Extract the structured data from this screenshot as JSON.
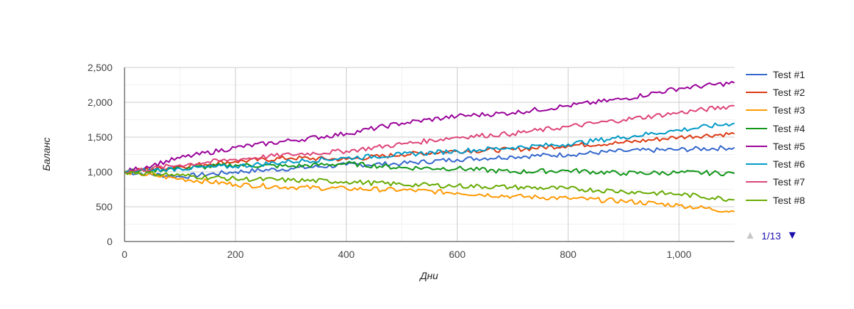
{
  "chart_data": {
    "type": "line",
    "title": "",
    "xlabel": "Дни",
    "ylabel": "Баланс",
    "xlim": [
      0,
      1100
    ],
    "ylim": [
      0,
      2500
    ],
    "x_ticks": [
      0,
      200,
      400,
      600,
      800,
      1000
    ],
    "x_tick_labels": [
      "0",
      "200",
      "400",
      "600",
      "800",
      "1,000"
    ],
    "y_ticks": [
      0,
      500,
      1000,
      1500,
      2000,
      2500
    ],
    "y_tick_labels": [
      "0",
      "500",
      "1,000",
      "1,500",
      "2,000",
      "2,500"
    ],
    "grid": true,
    "legend_position": "right",
    "series": [
      {
        "name": "Test #1",
        "color": "#3366cc",
        "x": [
          0,
          100,
          200,
          300,
          400,
          500,
          600,
          700,
          800,
          900,
          1000,
          1100
        ],
        "values": [
          1000,
          930,
          1000,
          1050,
          1100,
          1120,
          1180,
          1220,
          1250,
          1300,
          1320,
          1350
        ]
      },
      {
        "name": "Test #2",
        "color": "#dc3912",
        "x": [
          0,
          100,
          200,
          300,
          400,
          500,
          600,
          700,
          800,
          900,
          1000,
          1100
        ],
        "values": [
          1000,
          1080,
          1150,
          1200,
          1180,
          1250,
          1300,
          1320,
          1380,
          1420,
          1500,
          1550
        ]
      },
      {
        "name": "Test #3",
        "color": "#ff9900",
        "x": [
          0,
          100,
          200,
          300,
          400,
          500,
          600,
          700,
          800,
          900,
          1000,
          1100
        ],
        "values": [
          1000,
          900,
          820,
          780,
          760,
          740,
          700,
          650,
          620,
          580,
          520,
          430
        ]
      },
      {
        "name": "Test #4",
        "color": "#109618",
        "x": [
          0,
          100,
          200,
          300,
          400,
          500,
          600,
          700,
          800,
          900,
          1000,
          1100
        ],
        "values": [
          1000,
          1050,
          1100,
          1080,
          1120,
          1060,
          1050,
          1000,
          1020,
          980,
          990,
          980
        ]
      },
      {
        "name": "Test #5",
        "color": "#990099",
        "x": [
          0,
          100,
          200,
          300,
          400,
          500,
          600,
          700,
          800,
          900,
          1000,
          1100
        ],
        "values": [
          1000,
          1200,
          1350,
          1450,
          1550,
          1700,
          1800,
          1850,
          1950,
          2050,
          2200,
          2280
        ]
      },
      {
        "name": "Test #6",
        "color": "#0099c6",
        "x": [
          0,
          100,
          200,
          300,
          400,
          500,
          600,
          700,
          800,
          900,
          1000,
          1100
        ],
        "values": [
          1000,
          1050,
          1080,
          1150,
          1200,
          1250,
          1300,
          1350,
          1400,
          1500,
          1600,
          1700
        ]
      },
      {
        "name": "Test #7",
        "color": "#dd4477",
        "x": [
          0,
          100,
          200,
          300,
          400,
          500,
          600,
          700,
          800,
          900,
          1000,
          1100
        ],
        "values": [
          1000,
          1100,
          1180,
          1250,
          1300,
          1400,
          1500,
          1550,
          1650,
          1750,
          1850,
          1950
        ]
      },
      {
        "name": "Test #8",
        "color": "#66aa00",
        "x": [
          0,
          100,
          200,
          300,
          400,
          500,
          600,
          700,
          800,
          900,
          1000,
          1100
        ],
        "values": [
          1000,
          950,
          900,
          880,
          860,
          820,
          800,
          780,
          760,
          720,
          680,
          600
        ]
      }
    ]
  },
  "legend": {
    "items": [
      {
        "label": "Test #1",
        "color": "#3366cc"
      },
      {
        "label": "Test #2",
        "color": "#dc3912"
      },
      {
        "label": "Test #3",
        "color": "#ff9900"
      },
      {
        "label": "Test #4",
        "color": "#109618"
      },
      {
        "label": "Test #5",
        "color": "#990099"
      },
      {
        "label": "Test #6",
        "color": "#0099c6"
      },
      {
        "label": "Test #7",
        "color": "#dd4477"
      },
      {
        "label": "Test #8",
        "color": "#66aa00"
      }
    ],
    "page_text": "1/13",
    "prev_icon": "triangle-up-icon",
    "next_icon": "triangle-down-icon"
  }
}
